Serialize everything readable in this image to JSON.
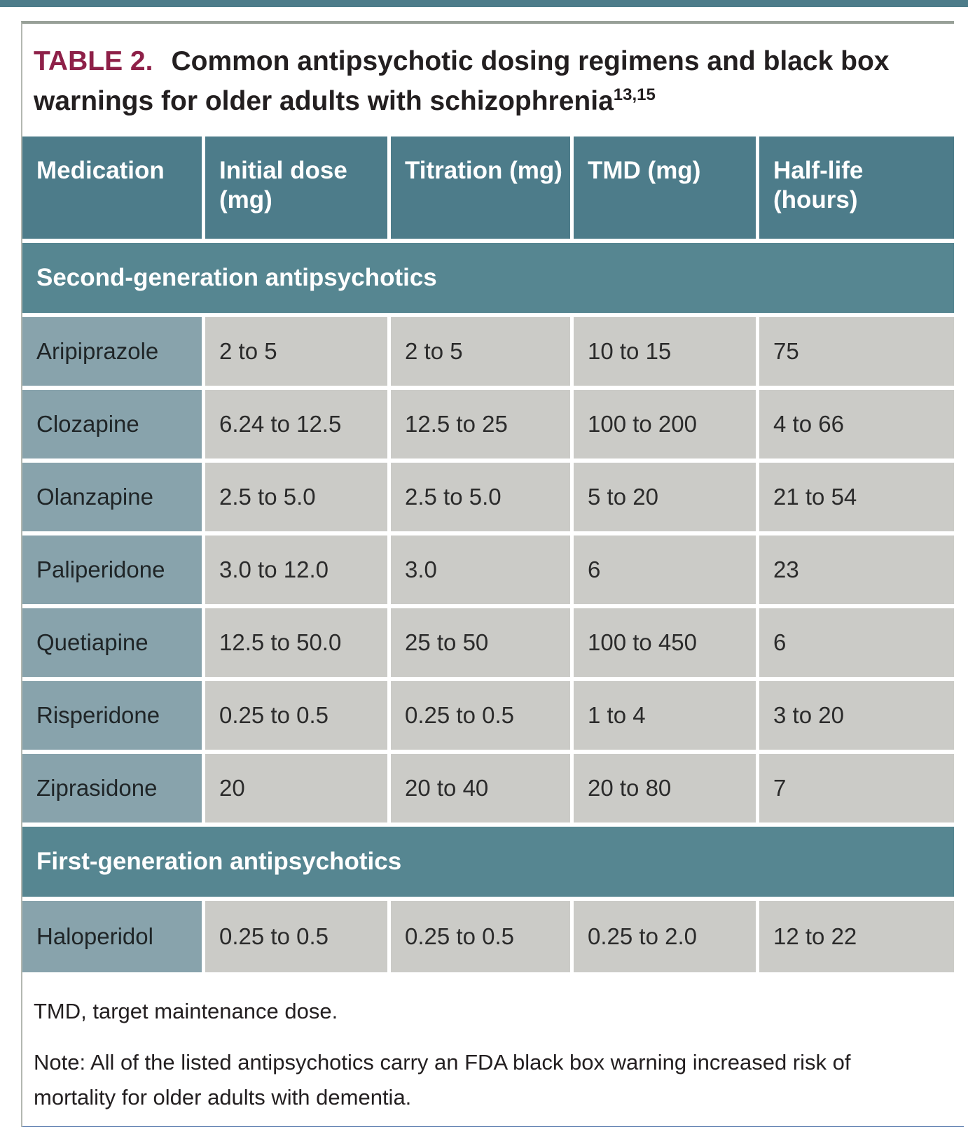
{
  "title": {
    "label": "TABLE 2.",
    "text": "Common antipsychotic dosing regimens and black box warnings for older adults with schizophrenia",
    "superscript": "13,15"
  },
  "table": {
    "columns": {
      "medication": "Medication",
      "initial_dose": "Initial dose (mg)",
      "titration": "Titration (mg)",
      "tmd": "TMD (mg)",
      "half_life": "Half-life (hours)"
    },
    "sections": [
      {
        "header": "Second-generation antipsychotics",
        "rows": [
          {
            "medication": "Aripiprazole",
            "initial_dose": "2 to 5",
            "titration": "2 to 5",
            "tmd": "10 to 15",
            "half_life": "75"
          },
          {
            "medication": "Clozapine",
            "initial_dose": "6.24 to 12.5",
            "titration": "12.5 to 25",
            "tmd": "100 to 200",
            "half_life": "4 to 66"
          },
          {
            "medication": "Olanzapine",
            "initial_dose": "2.5 to 5.0",
            "titration": "2.5 to 5.0",
            "tmd": "5 to 20",
            "half_life": "21 to 54"
          },
          {
            "medication": "Paliperidone",
            "initial_dose": "3.0 to 12.0",
            "titration": "3.0",
            "tmd": "6",
            "half_life": "23"
          },
          {
            "medication": "Quetiapine",
            "initial_dose": "12.5 to 50.0",
            "titration": "25 to 50",
            "tmd": "100 to 450",
            "half_life": "6"
          },
          {
            "medication": "Risperidone",
            "initial_dose": "0.25 to 0.5",
            "titration": "0.25 to 0.5",
            "tmd": "1 to 4",
            "half_life": "3 to 20"
          },
          {
            "medication": "Ziprasidone",
            "initial_dose": "20",
            "titration": "20 to 40",
            "tmd": "20 to 80",
            "half_life": "7"
          }
        ]
      },
      {
        "header": "First-generation antipsychotics",
        "rows": [
          {
            "medication": "Haloperidol",
            "initial_dose": "0.25 to 0.5",
            "titration": "0.25 to 0.5",
            "tmd": "0.25 to 2.0",
            "half_life": "12 to 22"
          }
        ]
      }
    ]
  },
  "footnotes": {
    "abbreviation": "TMD, target maintenance dose.",
    "note": "Note: All of the listed antipsychotics carry an FDA black box warning increased risk of mortality for older adults with dementia."
  },
  "colors": {
    "header_teal": "#4d7c8a",
    "section_band_teal": "#568691",
    "medication_cell_blue_gray": "#88a3ac",
    "data_cell_gray": "#cbcbc7",
    "title_label_maroon": "#8e2048",
    "top_border_gray": "#98a098",
    "bottom_rule_blue": "#4a6ea6",
    "top_accent_teal": "#4d7c8a"
  }
}
